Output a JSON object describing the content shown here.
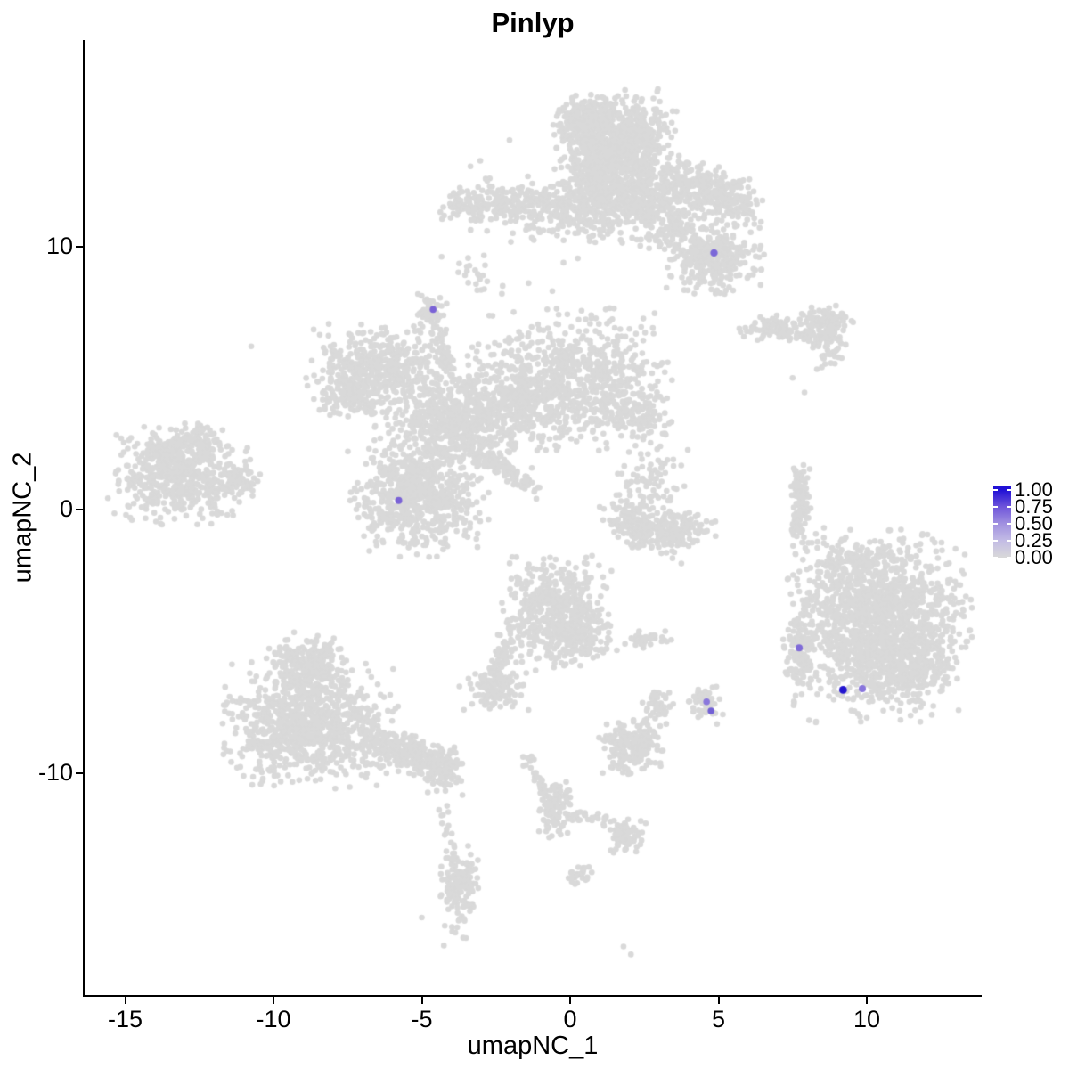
{
  "title": "Pinlyp",
  "chart_data": {
    "type": "scatter",
    "title": "Pinlyp",
    "xlabel": "umapNC_1",
    "ylabel": "umapNC_2",
    "x_ticks": [
      "-15",
      "-10",
      "-5",
      "0",
      "5",
      "10"
    ],
    "x_tick_values": [
      -15,
      -10,
      -5,
      0,
      5,
      10
    ],
    "y_ticks": [
      "10",
      "0",
      "-10"
    ],
    "y_tick_values": [
      10,
      0,
      -10
    ],
    "xlim": [
      -16.4,
      13.9
    ],
    "ylim": [
      -18.1,
      17.8
    ],
    "grid": false,
    "legend_position": "right",
    "base_point_color": "#d9d9d9",
    "clusters": [
      {
        "c": "top-head",
        "x": 1.55,
        "y": 14.0,
        "sx": 0.85,
        "sy": 0.85,
        "n": 850
      },
      {
        "c": "top-head-west",
        "x": 0.45,
        "y": 14.8,
        "sx": 0.45,
        "sy": 0.4,
        "n": 120
      },
      {
        "c": "top-head-south",
        "x": 1.3,
        "y": 12.9,
        "sx": 0.55,
        "sy": 0.45,
        "n": 150
      },
      {
        "c": "top-neck",
        "x": 0.9,
        "y": 12.4,
        "sx": 0.35,
        "sy": 0.45,
        "n": 100
      },
      {
        "c": "top-band",
        "x": 0.6,
        "y": 11.45,
        "sx": 1.7,
        "sy": 0.55,
        "n": 500
      },
      {
        "c": "top-band-east",
        "x": 2.4,
        "y": 11.9,
        "sx": 0.85,
        "sy": 0.5,
        "n": 200
      },
      {
        "c": "top-left-arm",
        "x": -2.75,
        "y": 11.45,
        "sx": 0.75,
        "sy": 0.35,
        "n": 75,
        "a": 5
      },
      {
        "c": "top-left-arm-end",
        "x": -3.55,
        "y": 11.6,
        "sx": 0.35,
        "sy": 0.3,
        "n": 50
      },
      {
        "c": "top-right-arm",
        "x": 4.3,
        "y": 12.3,
        "sx": 0.95,
        "sy": 0.42,
        "n": 240,
        "a": -25
      },
      {
        "c": "top-right-arm-tip",
        "x": 5.6,
        "y": 11.65,
        "sx": 0.42,
        "sy": 0.4,
        "n": 75
      },
      {
        "c": "top-southeast",
        "x": 4.75,
        "y": 9.65,
        "sx": 0.75,
        "sy": 0.62,
        "n": 340
      },
      {
        "c": "top-bridge",
        "x": 3.4,
        "y": 10.75,
        "sx": 0.5,
        "sy": 0.45,
        "n": 85
      },
      {
        "c": "top-halo",
        "x": 0.6,
        "y": 11.9,
        "sx": 2.6,
        "sy": 1.6,
        "n": 45
      },
      {
        "c": "top-streak",
        "x": -3.2,
        "y": 8.85,
        "sx": 0.28,
        "sy": 0.4,
        "n": 20,
        "a": 30
      },
      {
        "c": "east-small-west",
        "x": 6.9,
        "y": 6.85,
        "sx": 0.55,
        "sy": 0.24,
        "n": 95
      },
      {
        "c": "east-small-east",
        "x": 8.6,
        "y": 6.95,
        "sx": 0.42,
        "sy": 0.38,
        "n": 140
      },
      {
        "c": "east-small-tail",
        "x": 8.7,
        "y": 5.9,
        "sx": 0.3,
        "sy": 0.25,
        "n": 26,
        "a": 35
      },
      {
        "c": "central-north-knob",
        "x": -4.68,
        "y": 7.4,
        "sx": 0.25,
        "sy": 0.33,
        "n": 60
      },
      {
        "c": "central-north-stem",
        "x": -4.3,
        "y": 6.05,
        "sx": 0.15,
        "sy": 0.52,
        "n": 40,
        "a": 22
      },
      {
        "c": "central-west-wing",
        "x": -6.55,
        "y": 5.25,
        "sx": 1.05,
        "sy": 0.75,
        "n": 500
      },
      {
        "c": "central-west-wing-south",
        "x": -7.3,
        "y": 4.35,
        "sx": 0.5,
        "sy": 0.42,
        "n": 100
      },
      {
        "c": "central-body",
        "x": -3.9,
        "y": 3.3,
        "sx": 1.2,
        "sy": 1.0,
        "n": 650
      },
      {
        "c": "central-northeast",
        "x": 0.0,
        "y": 4.9,
        "sx": 1.5,
        "sy": 1.15,
        "n": 760
      },
      {
        "c": "central-east-tip",
        "x": 2.2,
        "y": 3.7,
        "sx": 0.6,
        "sy": 0.42,
        "n": 100,
        "a": -35
      },
      {
        "c": "central-junction",
        "x": -1.8,
        "y": 4.0,
        "sx": 0.75,
        "sy": 0.75,
        "n": 180
      },
      {
        "c": "central-south-arm",
        "x": -2.2,
        "y": 1.5,
        "sx": 0.7,
        "sy": 0.16,
        "n": 110,
        "a": -35
      },
      {
        "c": "central-south-round",
        "x": -5.15,
        "y": 0.35,
        "sx": 1.0,
        "sy": 0.9,
        "n": 600
      },
      {
        "c": "central-south-round-halo",
        "x": -5.3,
        "y": 1.7,
        "sx": 0.75,
        "sy": 0.38,
        "n": 65
      },
      {
        "c": "west-main",
        "x": -13.2,
        "y": 1.3,
        "sx": 1.05,
        "sy": 0.8,
        "n": 560
      },
      {
        "c": "west-east-tip",
        "x": -11.35,
        "y": 1.05,
        "sx": 0.45,
        "sy": 0.26,
        "n": 60
      },
      {
        "c": "west-north-arm",
        "x": -12.5,
        "y": 2.65,
        "sx": 0.5,
        "sy": 0.26,
        "n": 60,
        "a": -30
      },
      {
        "c": "west-north-bump",
        "x": -13.7,
        "y": 2.2,
        "sx": 0.45,
        "sy": 0.32,
        "n": 70
      },
      {
        "c": "mid-speckle",
        "x": 2.7,
        "y": 0.7,
        "sx": 0.6,
        "sy": 0.9,
        "n": 95
      },
      {
        "c": "mid-crescent-west",
        "x": 2.25,
        "y": -0.6,
        "sx": 0.62,
        "sy": 0.35,
        "n": 160,
        "a": -22
      },
      {
        "c": "mid-crescent-east",
        "x": 3.55,
        "y": -0.8,
        "sx": 0.62,
        "sy": 0.33,
        "n": 160,
        "a": 22
      },
      {
        "c": "mid-sliver",
        "x": 7.75,
        "y": 0.3,
        "sx": 0.18,
        "sy": 0.85,
        "n": 115
      },
      {
        "c": "southeast-main",
        "x": 10.45,
        "y": -4.4,
        "sx": 1.3,
        "sy": 1.55,
        "n": 1500
      },
      {
        "c": "southeast-bulge",
        "x": 11.55,
        "y": -6.0,
        "sx": 0.65,
        "sy": 0.5,
        "n": 170
      },
      {
        "c": "southeast-west-strip",
        "x": 7.75,
        "y": -5.5,
        "sx": 0.24,
        "sy": 0.85,
        "n": 115
      },
      {
        "c": "southeast-north-trail",
        "x": 8.35,
        "y": -2.4,
        "sx": 0.45,
        "sy": 1.0,
        "n": 32
      },
      {
        "c": "southeast-north-edge",
        "x": 9.7,
        "y": -1.95,
        "sx": 0.6,
        "sy": 0.3,
        "n": 65
      },
      {
        "c": "south-central-main",
        "x": -0.5,
        "y": -3.9,
        "sx": 0.8,
        "sy": 0.95,
        "n": 500
      },
      {
        "c": "south-central-east",
        "x": 0.5,
        "y": -4.9,
        "sx": 0.45,
        "sy": 0.4,
        "n": 105
      },
      {
        "c": "south-central-neck",
        "x": -2.3,
        "y": -5.5,
        "sx": 0.16,
        "sy": 0.58,
        "n": 60,
        "a": -20
      },
      {
        "c": "south-central-west-knob",
        "x": -2.55,
        "y": -6.8,
        "sx": 0.5,
        "sy": 0.35,
        "n": 120
      },
      {
        "c": "south-central-tiny-east",
        "x": 2.55,
        "y": -4.95,
        "sx": 0.38,
        "sy": 0.15,
        "n": 38
      },
      {
        "c": "pair-upper",
        "x": 2.95,
        "y": -7.5,
        "sx": 0.22,
        "sy": 0.32,
        "n": 45
      },
      {
        "c": "pair-lower",
        "x": 2.05,
        "y": -9.0,
        "sx": 0.5,
        "sy": 0.5,
        "n": 190
      },
      {
        "c": "purple-host",
        "x": 4.55,
        "y": -7.3,
        "sx": 0.3,
        "sy": 0.36,
        "n": 52
      },
      {
        "c": "southwest-top",
        "x": -8.85,
        "y": -5.95,
        "sx": 0.6,
        "sy": 0.55,
        "n": 270
      },
      {
        "c": "southwest-main",
        "x": -8.8,
        "y": -8.2,
        "sx": 1.25,
        "sy": 1.0,
        "n": 950
      },
      {
        "c": "southwest-tail",
        "x": -5.6,
        "y": -9.2,
        "sx": 0.85,
        "sy": 0.35,
        "n": 250,
        "a": -18
      },
      {
        "c": "southwest-tail-end",
        "x": -4.35,
        "y": -9.85,
        "sx": 0.36,
        "sy": 0.42,
        "n": 95
      },
      {
        "c": "trail-string",
        "x": -1.05,
        "y": -10.3,
        "sx": 0.12,
        "sy": 0.6,
        "n": 30,
        "a": 25
      },
      {
        "c": "trail-blob",
        "x": -0.5,
        "y": -11.35,
        "sx": 0.28,
        "sy": 0.55,
        "n": 95
      },
      {
        "c": "trail-east-string",
        "x": 0.4,
        "y": -11.65,
        "sx": 0.45,
        "sy": 0.11,
        "n": 30,
        "a": -8
      },
      {
        "c": "trail-end-blob",
        "x": 1.85,
        "y": -12.4,
        "sx": 0.3,
        "sy": 0.33,
        "n": 80
      },
      {
        "c": "trail-south-knob",
        "x": 0.35,
        "y": -13.85,
        "sx": 0.2,
        "sy": 0.18,
        "n": 28
      },
      {
        "c": "south-knot",
        "x": -3.7,
        "y": -14.2,
        "sx": 0.3,
        "sy": 0.62,
        "n": 150
      },
      {
        "c": "south-knot-chain",
        "x": -4.15,
        "y": -12.2,
        "sx": 0.15,
        "sy": 0.7,
        "n": 13
      },
      {
        "c": "south-knot-south",
        "x": -3.9,
        "y": -16.0,
        "sx": 0.26,
        "sy": 0.45,
        "n": 9
      }
    ],
    "singles": [
      [
        -10.75,
        6.2
      ],
      [
        7.9,
        4.45
      ],
      [
        7.5,
        5.0
      ],
      [
        3.45,
        -1.85
      ],
      [
        3.75,
        -2.05
      ],
      [
        7.5,
        -0.85
      ],
      [
        7.6,
        -1.7
      ],
      [
        1.85,
        -5.1
      ],
      [
        3.1,
        -4.85
      ],
      [
        2.55,
        -8.05
      ],
      [
        2.5,
        -8.5
      ],
      [
        2.72,
        -8.85
      ],
      [
        -5.0,
        -15.5
      ],
      [
        1.8,
        -16.6
      ],
      [
        2.05,
        -16.9
      ],
      [
        -2.3,
        8.2
      ],
      [
        -1.4,
        8.6
      ],
      [
        -0.6,
        8.3
      ]
    ],
    "expressing_cells": [
      {
        "x": 4.85,
        "y": 9.75,
        "color": "#7b68d8",
        "r": 4.2
      },
      {
        "x": -4.62,
        "y": 7.6,
        "color": "#7a62d6",
        "r": 3.8
      },
      {
        "x": -5.78,
        "y": 0.35,
        "color": "#7a62d6",
        "r": 4.0
      },
      {
        "x": 7.72,
        "y": -5.25,
        "color": "#7f6ad8",
        "r": 4.0
      },
      {
        "x": 9.2,
        "y": -6.85,
        "color": "#2214cf",
        "r": 4.4
      },
      {
        "x": 9.85,
        "y": -6.8,
        "color": "#8875dc",
        "r": 4.0
      },
      {
        "x": 4.6,
        "y": -7.3,
        "color": "#8a77dc",
        "r": 3.8
      },
      {
        "x": 4.75,
        "y": -7.65,
        "color": "#7260d5",
        "r": 3.8
      }
    ]
  },
  "legend": {
    "tick_labels": [
      "1.00",
      "0.75",
      "0.50",
      "0.25",
      "0.00"
    ],
    "tick_values": [
      1.0,
      0.75,
      0.5,
      0.25,
      0.0
    ],
    "min_color": "#d9d9d9",
    "max_color": "#2111d6",
    "stops": [
      "#2111d6",
      "#6f55da",
      "#a191e0",
      "#c3bce5",
      "#d9d9d9"
    ]
  }
}
